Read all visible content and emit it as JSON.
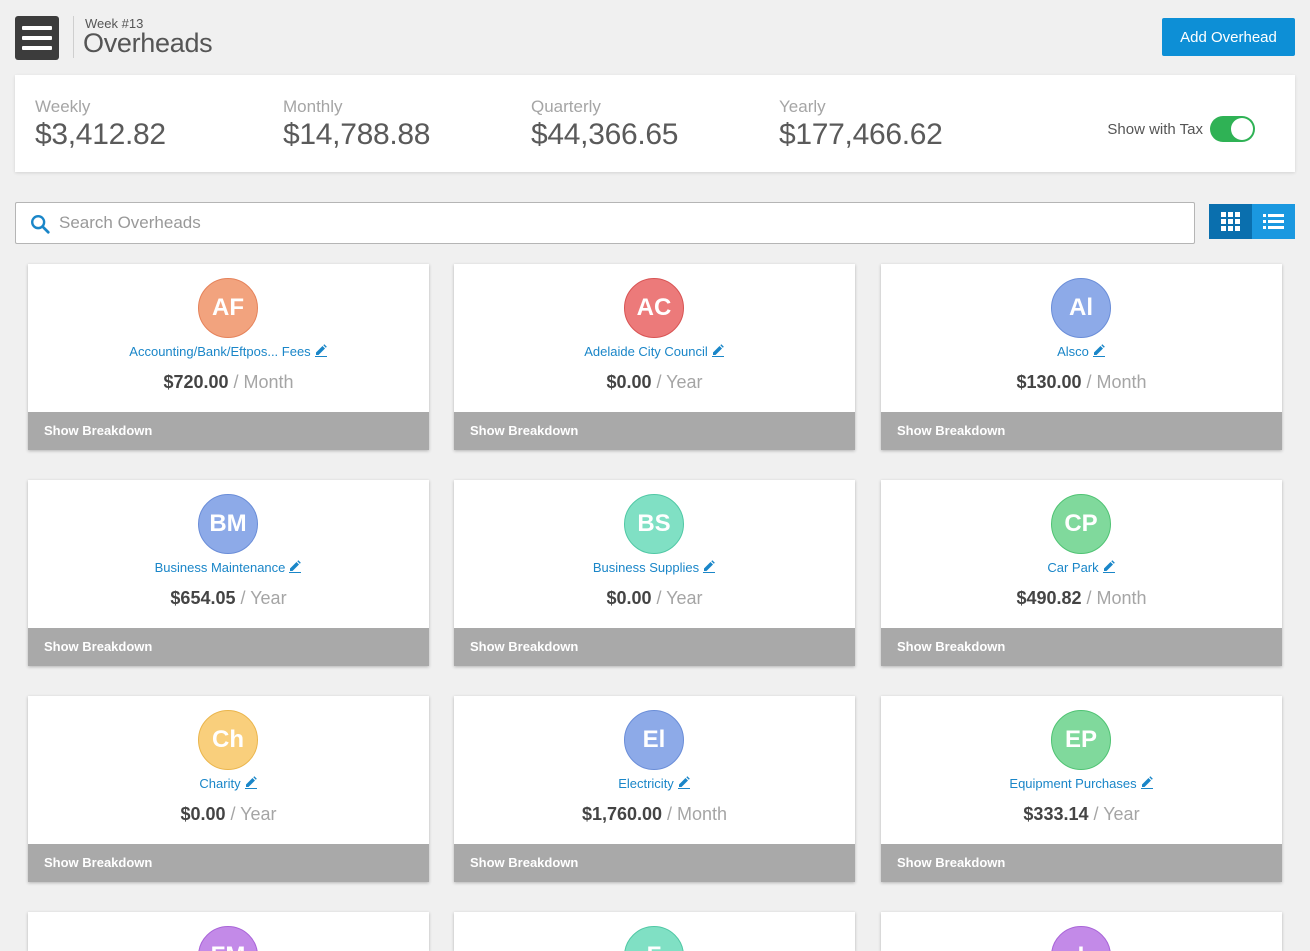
{
  "header": {
    "week": "Week #13",
    "title": "Overheads",
    "add_button": "Add Overhead"
  },
  "summary": {
    "stats": [
      {
        "label": "Weekly",
        "value": "$3,412.82"
      },
      {
        "label": "Monthly",
        "value": "$14,788.88"
      },
      {
        "label": "Quarterly",
        "value": "$44,366.65"
      },
      {
        "label": "Yearly",
        "value": "$177,466.62"
      }
    ],
    "tax_label": "Show with Tax",
    "tax_on": true
  },
  "search": {
    "placeholder": "Search Overheads",
    "value": ""
  },
  "view": {
    "active": "grid"
  },
  "colors": {
    "accent": "#0d8fd6",
    "link": "#1a86c8",
    "toggle_on": "#2fb255",
    "breakdown_bar": "#a9a9a9"
  },
  "cards": [
    {
      "initials": "AF",
      "name": "Accounting/Bank/Eftpos... Fees",
      "amount": "$720.00",
      "period": "/ Month",
      "bg": "#f2a37e",
      "border": "#e5825a",
      "breakdown": "Show Breakdown"
    },
    {
      "initials": "AC",
      "name": "Adelaide City Council",
      "amount": "$0.00",
      "period": "/ Year",
      "bg": "#ec7a7a",
      "border": "#d85454",
      "breakdown": "Show Breakdown"
    },
    {
      "initials": "Al",
      "name": "Alsco",
      "amount": "$130.00",
      "period": "/ Month",
      "bg": "#8daae8",
      "border": "#6a8dd8",
      "breakdown": "Show Breakdown"
    },
    {
      "initials": "BM",
      "name": "Business Maintenance",
      "amount": "$654.05",
      "period": "/ Year",
      "bg": "#8daae8",
      "border": "#6a8dd8",
      "breakdown": "Show Breakdown"
    },
    {
      "initials": "BS",
      "name": "Business Supplies",
      "amount": "$0.00",
      "period": "/ Year",
      "bg": "#80e0c4",
      "border": "#50c8a5",
      "breakdown": "Show Breakdown"
    },
    {
      "initials": "CP",
      "name": "Car Park",
      "amount": "$490.82",
      "period": "/ Month",
      "bg": "#80d99c",
      "border": "#4fc373",
      "breakdown": "Show Breakdown"
    },
    {
      "initials": "Ch",
      "name": "Charity",
      "amount": "$0.00",
      "period": "/ Year",
      "bg": "#f9cf7c",
      "border": "#eab54c",
      "breakdown": "Show Breakdown"
    },
    {
      "initials": "El",
      "name": "Electricity",
      "amount": "$1,760.00",
      "period": "/ Month",
      "bg": "#8daae8",
      "border": "#6a8dd8",
      "breakdown": "Show Breakdown"
    },
    {
      "initials": "EP",
      "name": "Equipment Purchases",
      "amount": "$333.14",
      "period": "/ Year",
      "bg": "#80d99c",
      "border": "#4fc373",
      "breakdown": "Show Breakdown"
    },
    {
      "initials": "FM",
      "name": "",
      "amount": "",
      "period": "",
      "bg": "#c38ae8",
      "border": "#a965d8",
      "breakdown": ""
    },
    {
      "initials": "F",
      "name": "",
      "amount": "",
      "period": "",
      "bg": "#80e0c4",
      "border": "#50c8a5",
      "breakdown": ""
    },
    {
      "initials": "I",
      "name": "",
      "amount": "",
      "period": "",
      "bg": "#c38ae8",
      "border": "#a965d8",
      "breakdown": ""
    }
  ]
}
